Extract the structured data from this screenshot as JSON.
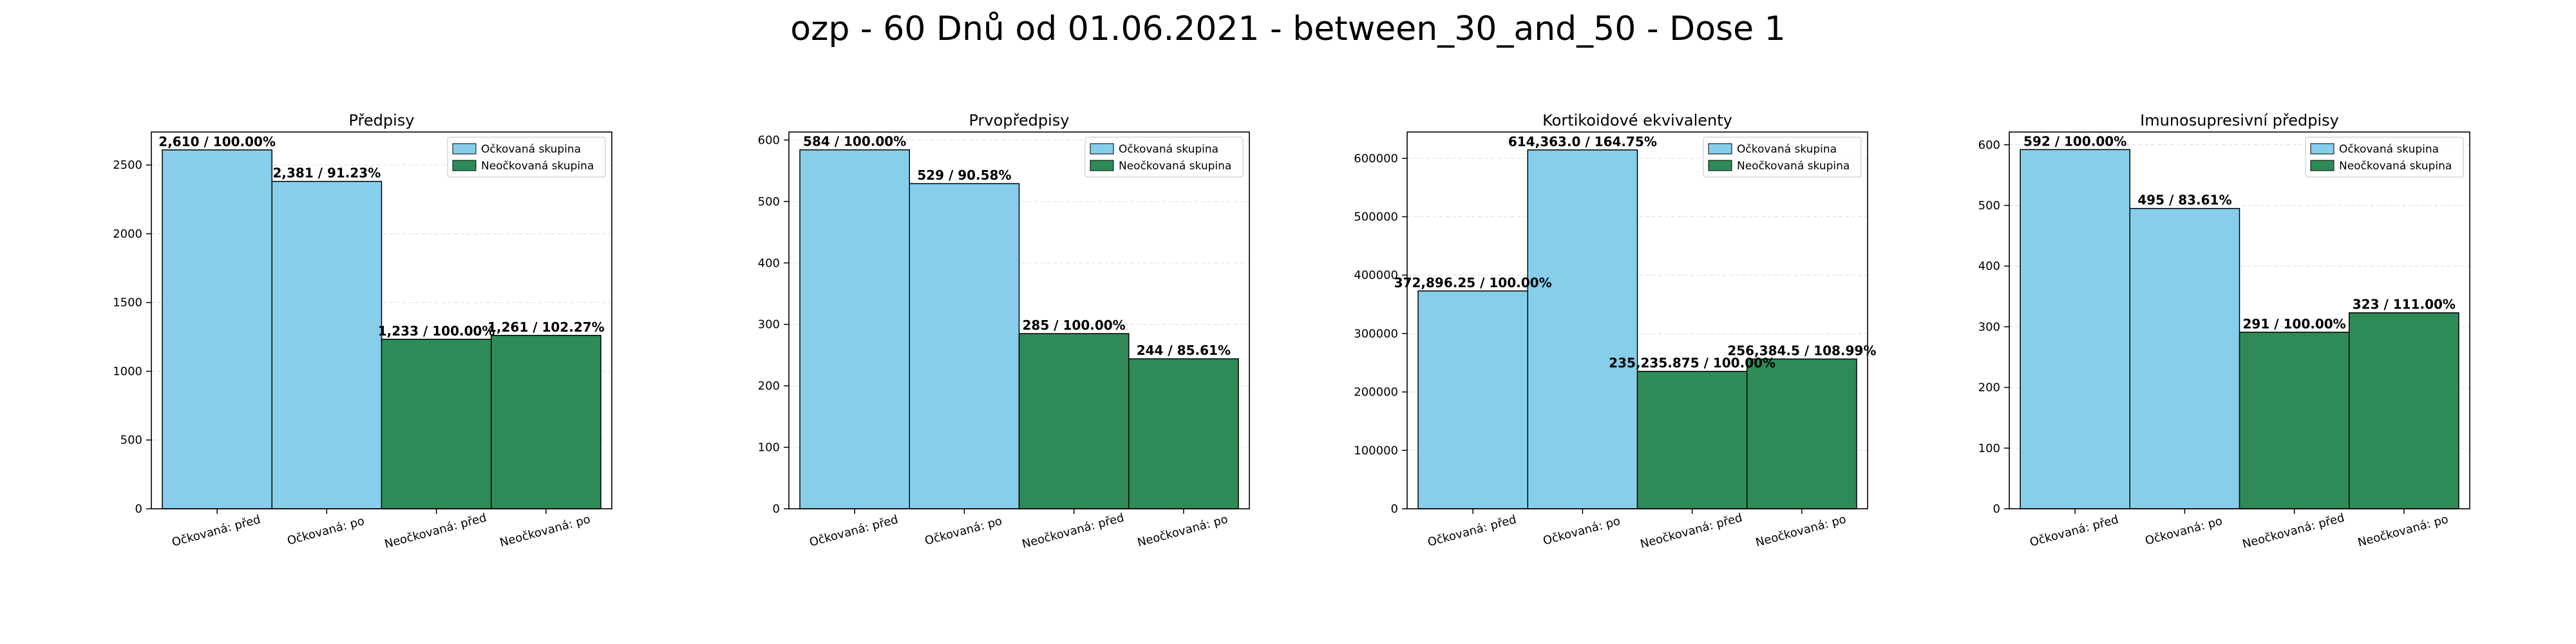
{
  "figure": {
    "title": "ozp - 60 Dnů od 01.06.2021 - between_30_and_50 - Dose 1"
  },
  "colors": {
    "vaccinated": "#87ceeb",
    "unvaccinated": "#2e8b57",
    "edge": "#000000",
    "grid": "#e6e6e6"
  },
  "chart_data": [
    {
      "type": "bar",
      "title": "Předpisy",
      "categories": [
        "Očkovaná: před",
        "Očkovaná: po",
        "Neočkovaná: před",
        "Neočkovaná: po"
      ],
      "values": [
        2610,
        2381,
        1233,
        1261
      ],
      "bar_labels": [
        "2,610 / 100.00%",
        "2,381 / 91.23%",
        "1,233 / 100.00%",
        "1,261 / 102.27%"
      ],
      "bar_groups": [
        "vaccinated",
        "vaccinated",
        "unvaccinated",
        "unvaccinated"
      ],
      "yticks": [
        0,
        500,
        1000,
        1500,
        2000,
        2500
      ],
      "ytick_labels": [
        "0",
        "500",
        "1000",
        "1500",
        "2000",
        "2500"
      ],
      "ylim": [
        0,
        2740
      ],
      "grid": true,
      "legend_position": "top-right",
      "legend": [
        "Očkovaná skupina",
        "Neočkovaná skupina"
      ]
    },
    {
      "type": "bar",
      "title": "Prvopředpisy",
      "categories": [
        "Očkovaná: před",
        "Očkovaná: po",
        "Neočkovaná: před",
        "Neočkovaná: po"
      ],
      "values": [
        584,
        529,
        285,
        244
      ],
      "bar_labels": [
        "584 / 100.00%",
        "529 / 90.58%",
        "285 / 100.00%",
        "244 / 85.61%"
      ],
      "bar_groups": [
        "vaccinated",
        "vaccinated",
        "unvaccinated",
        "unvaccinated"
      ],
      "yticks": [
        0,
        100,
        200,
        300,
        400,
        500,
        600
      ],
      "ytick_labels": [
        "0",
        "100",
        "200",
        "300",
        "400",
        "500",
        "600"
      ],
      "ylim": [
        0,
        613
      ],
      "grid": true,
      "legend_position": "top-right",
      "legend": [
        "Očkovaná skupina",
        "Neočkovaná skupina"
      ]
    },
    {
      "type": "bar",
      "title": "Kortikoidové ekvivalenty",
      "categories": [
        "Očkovaná: před",
        "Očkovaná: po",
        "Neočkovaná: před",
        "Neočkovaná: po"
      ],
      "values": [
        372896.25,
        614363.0,
        235235.875,
        256384.5
      ],
      "bar_labels": [
        "372,896.25 / 100.00%",
        "614,363.0 / 164.75%",
        "235,235.875 / 100.00%",
        "256,384.5 / 108.99%"
      ],
      "bar_groups": [
        "vaccinated",
        "vaccinated",
        "unvaccinated",
        "unvaccinated"
      ],
      "yticks": [
        0,
        100000,
        200000,
        300000,
        400000,
        500000,
        600000
      ],
      "ytick_labels": [
        "0",
        "100000",
        "200000",
        "300000",
        "400000",
        "500000",
        "600000"
      ],
      "ylim": [
        0,
        645000
      ],
      "grid": true,
      "legend_position": "top-right",
      "legend": [
        "Očkovaná skupina",
        "Neočkovaná skupina"
      ]
    },
    {
      "type": "bar",
      "title": "Imunosupresivní předpisy",
      "categories": [
        "Očkovaná: před",
        "Očkovaná: po",
        "Neočkovaná: před",
        "Neočkovaná: po"
      ],
      "values": [
        592,
        495,
        291,
        323
      ],
      "bar_labels": [
        "592 / 100.00%",
        "495 / 83.61%",
        "291 / 100.00%",
        "323 / 111.00%"
      ],
      "bar_groups": [
        "vaccinated",
        "vaccinated",
        "unvaccinated",
        "unvaccinated"
      ],
      "yticks": [
        0,
        100,
        200,
        300,
        400,
        500,
        600
      ],
      "ytick_labels": [
        "0",
        "100",
        "200",
        "300",
        "400",
        "500",
        "600"
      ],
      "ylim": [
        0,
        621
      ],
      "grid": true,
      "legend_position": "top-right",
      "legend": [
        "Očkovaná skupina",
        "Neočkovaná skupina"
      ]
    }
  ]
}
